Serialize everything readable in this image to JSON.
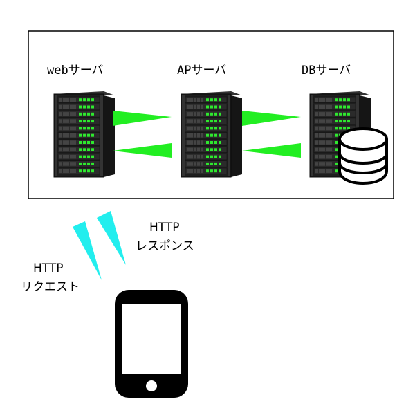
{
  "servers": [
    {
      "label": "webサーバ"
    },
    {
      "label": "APサーバ"
    },
    {
      "label": "DBサーバ"
    }
  ],
  "request": {
    "line1": "HTTP",
    "line2": "リクエスト"
  },
  "response": {
    "line1": "HTTP",
    "line2": "レスポンス"
  },
  "colors": {
    "server_body": "#1c1c1c",
    "server_led": "#2ee82e",
    "server_arrows": "#22ee22",
    "http_arrows": "#22eeee",
    "frame": "#000000",
    "phone": "#000000"
  },
  "icons": [
    "server-icon",
    "database-icon",
    "smartphone-icon"
  ]
}
